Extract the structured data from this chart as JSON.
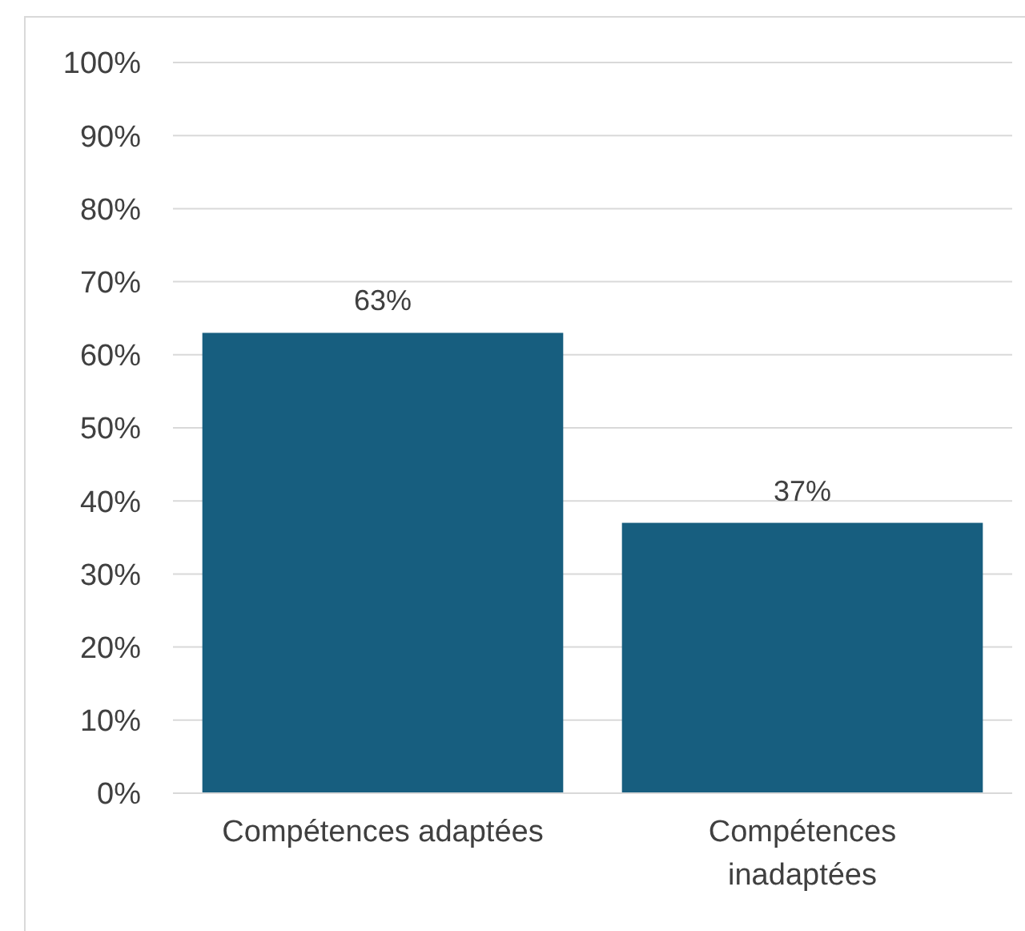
{
  "chart_data": {
    "type": "bar",
    "categories": [
      "Compétences adaptées",
      "Compétences inadaptées"
    ],
    "values": [
      63,
      37
    ],
    "value_labels": [
      "63%",
      "37%"
    ],
    "color": "#175e7f",
    "ylim": [
      0,
      100
    ],
    "yticks": [
      {
        "value": 0,
        "label": "0%"
      },
      {
        "value": 10,
        "label": "10%"
      },
      {
        "value": 20,
        "label": "20%"
      },
      {
        "value": 30,
        "label": "30%"
      },
      {
        "value": 40,
        "label": "40%"
      },
      {
        "value": 50,
        "label": "50%"
      },
      {
        "value": 60,
        "label": "60%"
      },
      {
        "value": 70,
        "label": "70%"
      },
      {
        "value": 80,
        "label": "80%"
      },
      {
        "value": 90,
        "label": "90%"
      },
      {
        "value": 100,
        "label": "100%"
      }
    ],
    "grid": "y"
  }
}
